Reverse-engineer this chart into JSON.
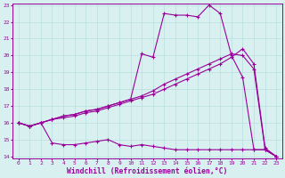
{
  "x": [
    0,
    1,
    2,
    3,
    4,
    5,
    6,
    7,
    8,
    9,
    10,
    11,
    12,
    13,
    14,
    15,
    16,
    17,
    18,
    19,
    20,
    21,
    22,
    23
  ],
  "series1": [
    16.0,
    15.8,
    16.0,
    14.8,
    14.7,
    14.7,
    14.8,
    14.9,
    15.0,
    14.7,
    14.6,
    14.7,
    14.6,
    14.5,
    14.4,
    14.4,
    14.4,
    14.4,
    14.4,
    14.4,
    14.4,
    14.4,
    14.4,
    14.0
  ],
  "series2": [
    16.0,
    15.8,
    16.0,
    16.2,
    16.3,
    16.4,
    16.6,
    16.7,
    16.9,
    17.1,
    17.3,
    17.5,
    17.7,
    18.0,
    18.3,
    18.6,
    18.9,
    19.2,
    19.5,
    19.9,
    20.4,
    19.5,
    14.5,
    14.0
  ],
  "series3": [
    16.0,
    15.8,
    16.0,
    16.2,
    16.4,
    16.5,
    16.7,
    16.8,
    17.0,
    17.2,
    17.4,
    17.6,
    17.9,
    18.3,
    18.6,
    18.9,
    19.2,
    19.5,
    19.8,
    20.1,
    20.0,
    19.2,
    14.4,
    14.0
  ],
  "series4": [
    16.0,
    15.8,
    16.0,
    16.2,
    16.4,
    16.5,
    16.7,
    16.8,
    17.0,
    17.2,
    17.4,
    20.1,
    19.9,
    22.5,
    22.4,
    22.4,
    22.3,
    23.0,
    22.5,
    20.0,
    18.7,
    14.4,
    14.4,
    14.0
  ],
  "color": "#990099",
  "bg_color": "#d8f0f0",
  "grid_color": "#b8dede",
  "xlabel": "Windchill (Refroidissement éolien,°C)",
  "ylim": [
    14,
    23
  ],
  "xlim": [
    -0.5,
    23.5
  ],
  "yticks": [
    14,
    15,
    16,
    17,
    18,
    19,
    20,
    21,
    22,
    23
  ],
  "xticks": [
    0,
    1,
    2,
    3,
    4,
    5,
    6,
    7,
    8,
    9,
    10,
    11,
    12,
    13,
    14,
    15,
    16,
    17,
    18,
    19,
    20,
    21,
    22,
    23
  ],
  "tick_labelsize": 4.5,
  "xlabel_fontsize": 5.8,
  "marker_size": 3.0,
  "line_width": 0.8
}
